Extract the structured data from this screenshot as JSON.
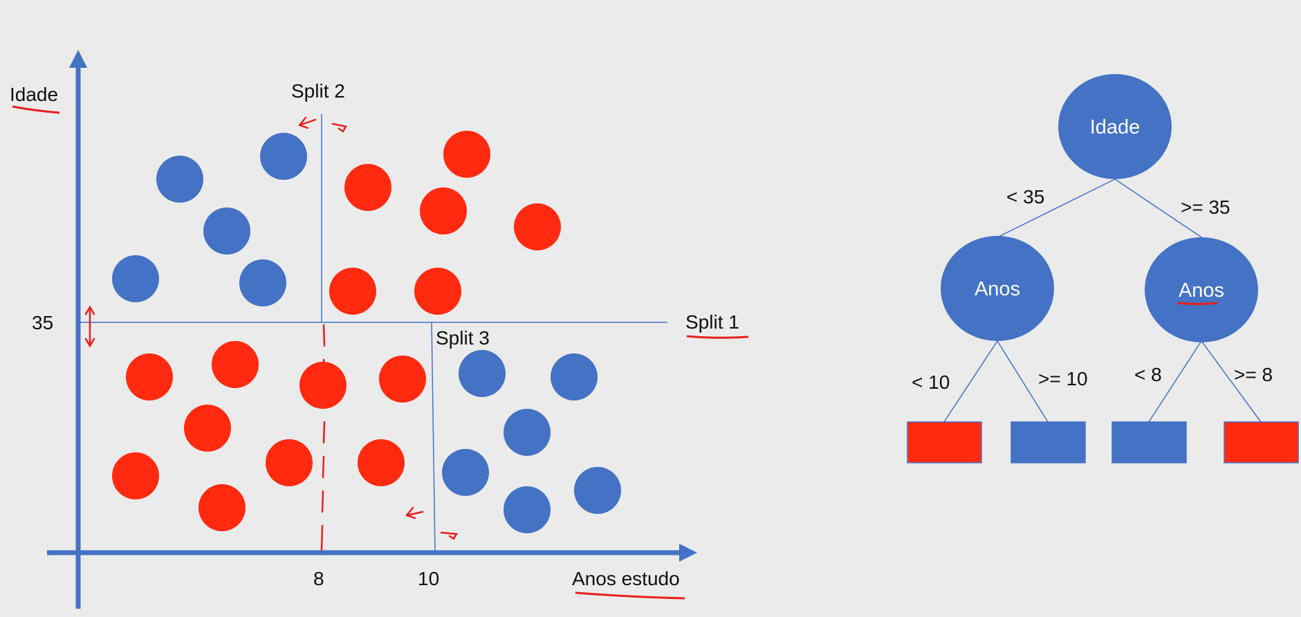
{
  "colors": {
    "blue": "#4472c4",
    "red": "#ff2a10",
    "annotation": "#e8201a",
    "background": "#ebebeb",
    "text": "#111111"
  },
  "scatter": {
    "axis_y_label": "Idade",
    "axis_x_label": "Anos estudo",
    "tick_y": "35",
    "tick_x_8": "8",
    "tick_x_10": "10",
    "split1_label": "Split 1",
    "split2_label": "Split 2",
    "split3_label": "Split 3"
  },
  "tree": {
    "root": "Idade",
    "left_node": "Anos",
    "right_node": "Anos",
    "edge_lt35": "< 35",
    "edge_ge35": ">= 35",
    "edge_lt10": "< 10",
    "edge_ge10": ">= 10",
    "edge_lt8": "< 8",
    "edge_ge8": ">= 8",
    "leaves": [
      "red",
      "blue",
      "blue",
      "red"
    ]
  }
}
